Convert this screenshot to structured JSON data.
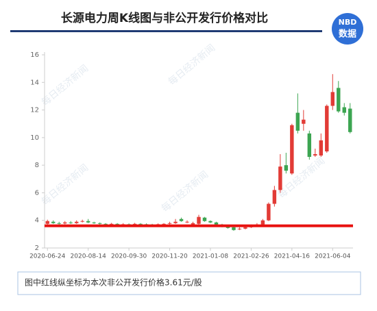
{
  "header": {
    "title": "长源电力周K线图与非公开发行价格对比",
    "logo_top": "NBD",
    "logo_bottom": "数据"
  },
  "chart_data": {
    "type": "candlestick",
    "categories": [
      "2020-06-24",
      null,
      null,
      null,
      null,
      null,
      null,
      "2020-08-14",
      null,
      null,
      null,
      null,
      null,
      null,
      "2020-09-30",
      null,
      null,
      null,
      null,
      null,
      null,
      "2020-11-20",
      null,
      null,
      null,
      null,
      null,
      null,
      "2021-01-08",
      null,
      null,
      null,
      null,
      null,
      null,
      "2021-02-26",
      null,
      null,
      null,
      null,
      null,
      null,
      "2021-04-16",
      null,
      null,
      null,
      null,
      null,
      null,
      "2021-06-04",
      null,
      null,
      null
    ],
    "open": [
      3.75,
      3.9,
      3.8,
      3.78,
      3.85,
      3.8,
      3.9,
      3.95,
      3.85,
      3.8,
      3.75,
      3.72,
      3.75,
      3.7,
      3.72,
      3.7,
      3.75,
      3.72,
      3.7,
      3.68,
      3.72,
      3.75,
      3.8,
      4.1,
      3.85,
      3.7,
      3.75,
      4.2,
      3.95,
      3.85,
      3.7,
      3.6,
      3.5,
      3.35,
      3.4,
      3.5,
      3.6,
      3.7,
      4.0,
      5.2,
      6.2,
      8.0,
      7.4,
      11.8,
      11.0,
      10.3,
      8.7,
      8.7,
      9.0,
      12.3,
      13.6,
      12.2,
      12.1
    ],
    "high": [
      4.05,
      4.0,
      3.9,
      3.95,
      3.95,
      4.0,
      4.05,
      4.1,
      3.9,
      3.85,
      3.8,
      3.82,
      3.8,
      3.8,
      3.78,
      3.82,
      3.8,
      3.78,
      3.75,
      3.78,
      3.8,
      3.9,
      4.1,
      4.2,
      4.0,
      3.9,
      4.4,
      4.25,
      4.0,
      3.9,
      3.75,
      3.65,
      3.55,
      3.5,
      3.55,
      3.7,
      3.8,
      4.1,
      5.3,
      6.5,
      8.8,
      8.9,
      11.0,
      13.2,
      12.0,
      10.5,
      9.2,
      10.3,
      12.4,
      14.6,
      14.1,
      12.5,
      12.5
    ],
    "low": [
      3.7,
      3.75,
      3.7,
      3.72,
      3.75,
      3.75,
      3.85,
      3.8,
      3.75,
      3.7,
      3.65,
      3.68,
      3.65,
      3.65,
      3.65,
      3.66,
      3.68,
      3.65,
      3.62,
      3.64,
      3.68,
      3.7,
      3.75,
      3.9,
      3.8,
      3.6,
      3.7,
      3.9,
      3.8,
      3.65,
      3.5,
      3.4,
      3.25,
      3.3,
      3.35,
      3.45,
      3.55,
      3.65,
      3.95,
      5.0,
      6.0,
      7.4,
      7.3,
      10.3,
      10.5,
      8.4,
      8.6,
      8.6,
      8.9,
      12.0,
      11.8,
      11.6,
      10.3
    ],
    "close": [
      3.95,
      3.8,
      3.78,
      3.85,
      3.8,
      3.9,
      3.95,
      3.85,
      3.8,
      3.75,
      3.72,
      3.75,
      3.7,
      3.72,
      3.7,
      3.75,
      3.72,
      3.7,
      3.68,
      3.72,
      3.75,
      3.8,
      3.9,
      3.95,
      3.9,
      3.8,
      4.25,
      3.95,
      3.85,
      3.7,
      3.6,
      3.45,
      3.3,
      3.4,
      3.5,
      3.6,
      3.7,
      4.0,
      5.2,
      6.2,
      7.9,
      7.6,
      10.9,
      10.5,
      11.3,
      8.6,
      8.8,
      9.8,
      12.3,
      13.3,
      11.9,
      11.8,
      10.4
    ],
    "up_color": "#e23b36",
    "down_color": "#3ca551",
    "reference_line": {
      "value": 3.61,
      "color": "#e8110f"
    },
    "ylim": [
      2,
      16
    ],
    "yticks": [
      2,
      4,
      6,
      8,
      10,
      12,
      14,
      16
    ],
    "watermark": "每日经济新闻",
    "annotation": "图中红线纵坐标为本次非公开发行价格3.61元/股"
  }
}
